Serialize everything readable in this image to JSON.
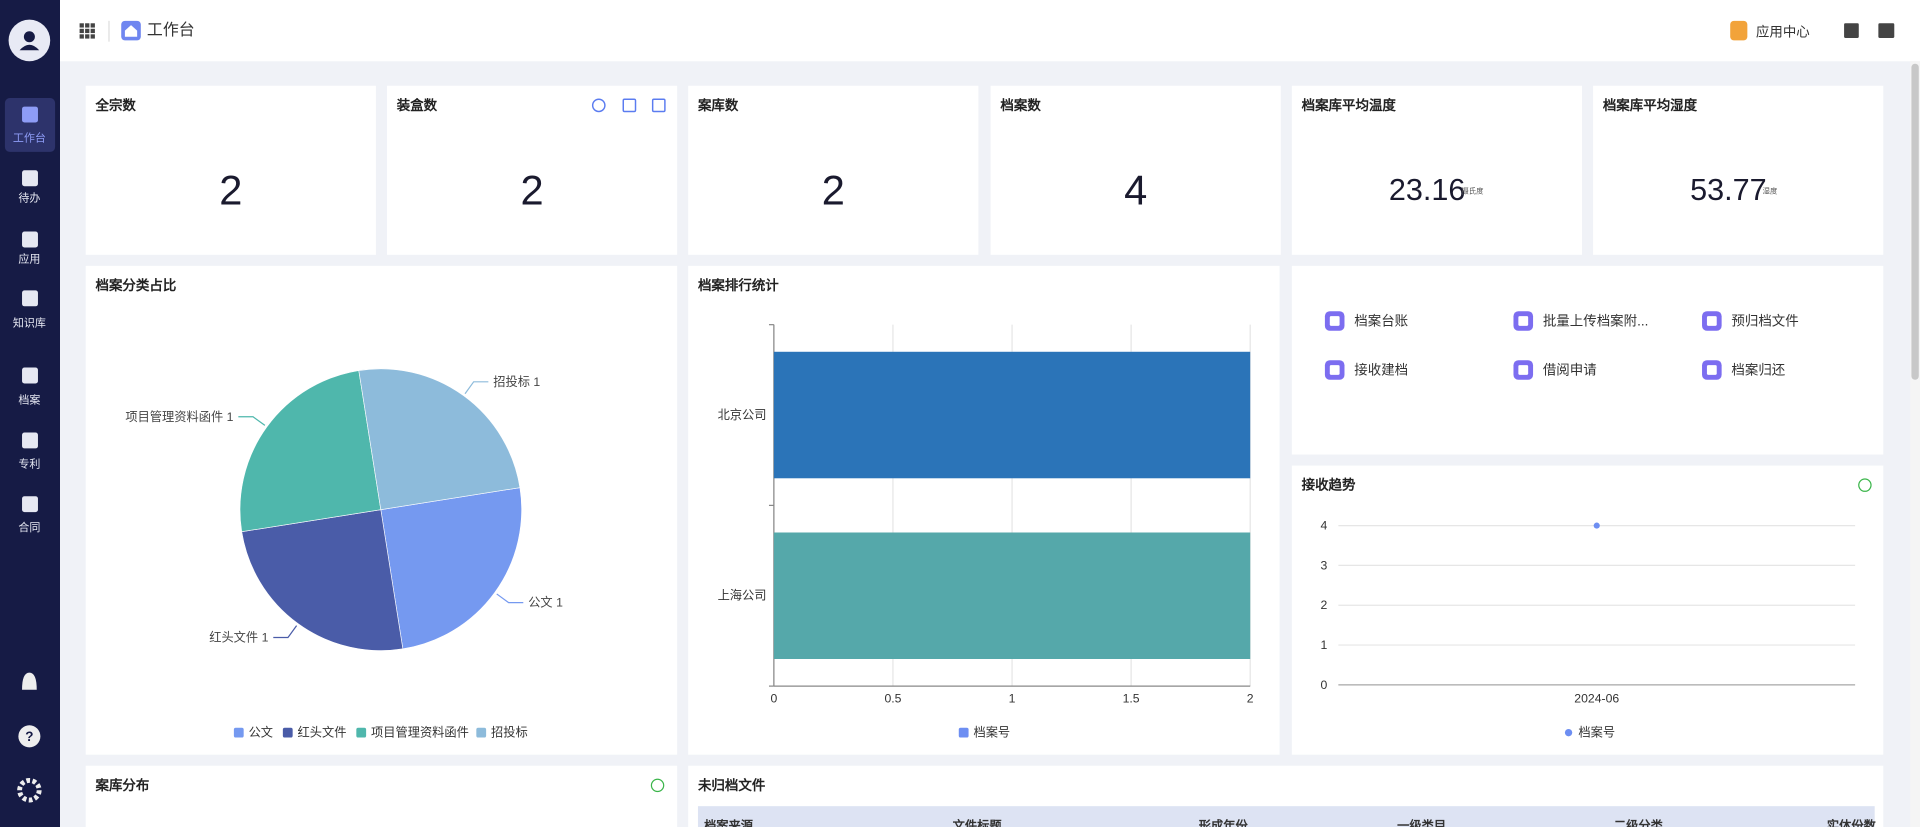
{
  "header": {
    "breadcrumb": "工作台",
    "app_center": "应用中心"
  },
  "sidebar": {
    "nav": [
      "工作台",
      "待办",
      "应用",
      "知识库",
      "档案",
      "专利",
      "合同"
    ]
  },
  "stats": [
    {
      "title": "全宗数",
      "value": 2
    },
    {
      "title": "装盒数",
      "value": 2
    },
    {
      "title": "案库数",
      "value": 2
    },
    {
      "title": "档案数",
      "value": 4
    },
    {
      "title": "档案库平均温度",
      "value": 23.16,
      "unit": "摄氏度"
    },
    {
      "title": "档案库平均湿度",
      "value": 53.77,
      "unit": "湿度"
    }
  ],
  "shortcuts": [
    "档案台账",
    "批量上传档案附...",
    "预归档文件",
    "接收建档",
    "借阅申请",
    "档案归还"
  ],
  "chart_data": [
    {
      "type": "pie",
      "title": "档案分类占比",
      "categories": [
        "公文",
        "红头文件",
        "项目管理资料函件",
        "招投标"
      ],
      "values": [
        1,
        1,
        1,
        1
      ],
      "colors": [
        "#7599f0",
        "#4a5ca8",
        "#4fb7ac",
        "#8dbbdb"
      ]
    },
    {
      "type": "bar",
      "orientation": "horizontal",
      "title": "档案排行统计",
      "categories": [
        "北京公司",
        "上海公司"
      ],
      "series": [
        {
          "name": "档案号",
          "color": "#6d8ef2",
          "values": [
            2,
            2
          ]
        }
      ],
      "bar_colors": [
        "#2b74b8",
        "#55a8aa"
      ],
      "xlim": [
        0,
        2
      ],
      "xticks": [
        0,
        0.5,
        1,
        1.5,
        2
      ],
      "grid": true
    },
    {
      "type": "line",
      "title": "接收趋势",
      "categories": [
        "2024-06"
      ],
      "series": [
        {
          "name": "档案号",
          "color": "#6d8ef2",
          "values": [
            4
          ]
        }
      ],
      "ylim": [
        0,
        4
      ],
      "yticks": [
        0,
        1,
        2,
        3,
        4
      ],
      "grid": true
    }
  ],
  "bottom": {
    "distribution_title": "案库分布",
    "unfiled_title": "未归档文件",
    "columns": [
      "档案来源",
      "文件标题",
      "形成年份",
      "一级类目",
      "二级分类",
      "实体份数"
    ]
  }
}
